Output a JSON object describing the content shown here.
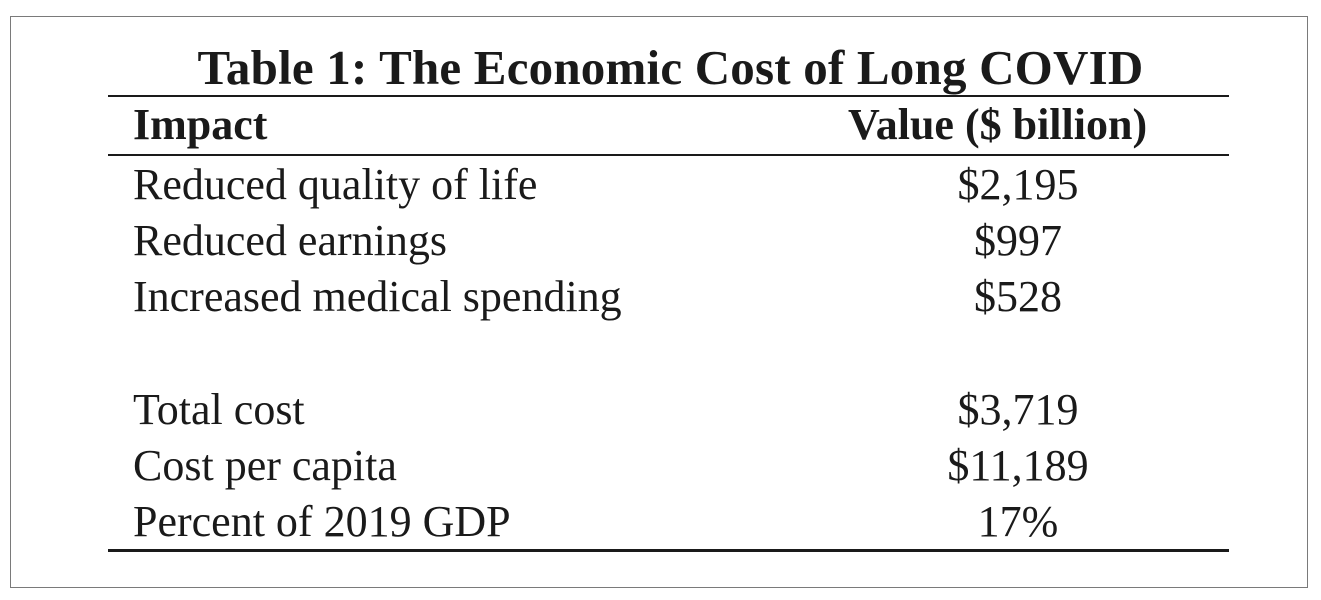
{
  "table": {
    "title": "Table 1: The Economic Cost of Long COVID",
    "headers": {
      "impact": "Impact",
      "value": "Value ($ billion)"
    },
    "rows": [
      {
        "impact": "Reduced quality of life",
        "value": "$2,195"
      },
      {
        "impact": "Reduced earnings",
        "value": "$997"
      },
      {
        "impact": "Increased medical spending",
        "value": "$528"
      },
      {
        "impact": "Total cost",
        "value": "$3,719"
      },
      {
        "impact": "Cost per capita",
        "value": "$11,189"
      },
      {
        "impact": "Percent of 2019 GDP",
        "value": "17%"
      }
    ]
  }
}
